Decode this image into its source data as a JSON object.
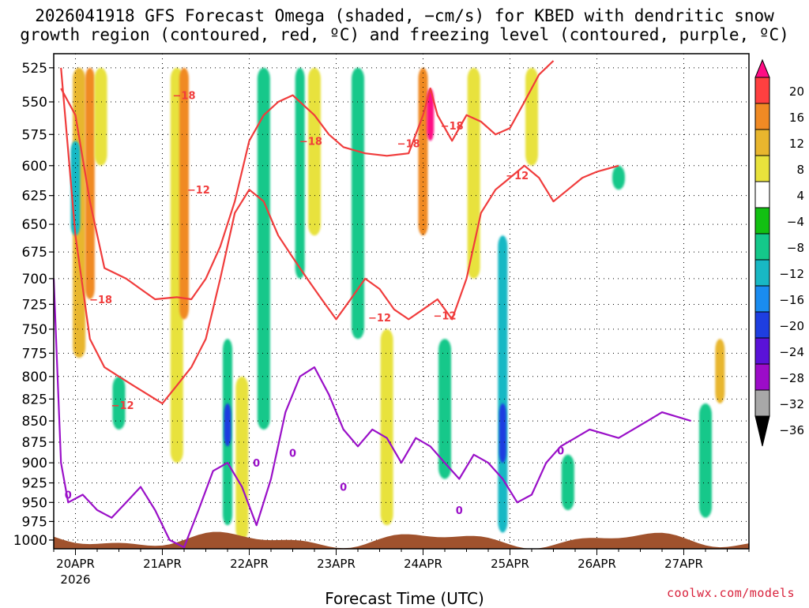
{
  "title": {
    "line1": "2026041918 GFS Forecast Omega (shaded, −cm/s) for KBED with dendritic snow",
    "line2": "growth region (contoured, red, ºC) and freezing level (contoured, purple, ºC)"
  },
  "x_axis_title": "Forecast Time (UTC)",
  "credit": "coolwx.com/models",
  "chart_data": {
    "type": "heatmap",
    "xlabel": "Forecast Time (UTC)",
    "ylabel": "",
    "x_ticks": [
      "20APR",
      "21APR",
      "22APR",
      "23APR",
      "24APR",
      "25APR",
      "26APR",
      "27APR"
    ],
    "x_tick_year": "2026",
    "x_range_hours": [
      -6,
      186
    ],
    "y_ticks": [
      525,
      550,
      575,
      600,
      625,
      650,
      675,
      700,
      725,
      750,
      775,
      800,
      825,
      850,
      875,
      900,
      925,
      950,
      975,
      1000
    ],
    "y_range_hpa": [
      515,
      1012
    ],
    "y_scale": "log-pressure",
    "grid": true,
    "colorbar": {
      "labels": [
        "20",
        "16",
        "12",
        "8",
        "4",
        "−4",
        "−8",
        "−12",
        "−16",
        "−20",
        "−24",
        "−28",
        "−32",
        "−36"
      ],
      "colors": [
        "#ff0d84",
        "#ff4040",
        "#f08a24",
        "#e8b62e",
        "#e8e23c",
        "#ffffff",
        "#12c012",
        "#14c88a",
        "#18b8c4",
        "#1a8cf0",
        "#1e3ee0",
        "#5a12d8",
        "#9c0cc8",
        "#a8a8a8",
        "#000000"
      ]
    },
    "omega_regions": [
      {
        "t": 1,
        "p": [
          525,
          780
        ],
        "v": 8
      },
      {
        "t": 4,
        "p": [
          525,
          720
        ],
        "v": 12
      },
      {
        "t": 7,
        "p": [
          525,
          600
        ],
        "v": 6
      },
      {
        "t": 0,
        "p": [
          580,
          660
        ],
        "v": -14
      },
      {
        "t": 12,
        "p": [
          800,
          860
        ],
        "v": -8
      },
      {
        "t": 28,
        "p": [
          525,
          900
        ],
        "v": 6
      },
      {
        "t": 30,
        "p": [
          525,
          740
        ],
        "v": 12
      },
      {
        "t": 42,
        "p": [
          760,
          980
        ],
        "v": -10
      },
      {
        "t": 42,
        "p": [
          830,
          880
        ],
        "v": -22
      },
      {
        "t": 46,
        "p": [
          800,
          1000
        ],
        "v": 6
      },
      {
        "t": 52,
        "p": [
          525,
          860
        ],
        "v": -8
      },
      {
        "t": 62,
        "p": [
          525,
          700
        ],
        "v": -10
      },
      {
        "t": 66,
        "p": [
          525,
          660
        ],
        "v": 5
      },
      {
        "t": 78,
        "p": [
          525,
          760
        ],
        "v": -8
      },
      {
        "t": 86,
        "p": [
          750,
          980
        ],
        "v": 6
      },
      {
        "t": 96,
        "p": [
          525,
          660
        ],
        "v": 12
      },
      {
        "t": 98,
        "p": [
          540,
          580
        ],
        "v": 20
      },
      {
        "t": 102,
        "p": [
          760,
          920
        ],
        "v": -8
      },
      {
        "t": 110,
        "p": [
          525,
          700
        ],
        "v": 5
      },
      {
        "t": 118,
        "p": [
          660,
          990
        ],
        "v": -12
      },
      {
        "t": 118,
        "p": [
          830,
          900
        ],
        "v": -22
      },
      {
        "t": 126,
        "p": [
          525,
          600
        ],
        "v": 6
      },
      {
        "t": 136,
        "p": [
          890,
          960
        ],
        "v": -8
      },
      {
        "t": 150,
        "p": [
          600,
          620
        ],
        "v": -8
      },
      {
        "t": 174,
        "p": [
          830,
          970
        ],
        "v": -8
      },
      {
        "t": 178,
        "p": [
          760,
          830
        ],
        "v": 10
      }
    ],
    "series": [
      {
        "name": "−18",
        "label_points": [
          [
            30,
            545
          ],
          [
            7,
            720
          ],
          [
            65,
            580
          ],
          [
            92,
            582
          ],
          [
            104,
            568
          ]
        ],
        "values": [
          [
            -4,
            540
          ],
          [
            0,
            560
          ],
          [
            4,
            630
          ],
          [
            8,
            690
          ],
          [
            14,
            700
          ],
          [
            18,
            710
          ],
          [
            22,
            720
          ],
          [
            28,
            718
          ],
          [
            32,
            720
          ],
          [
            36,
            700
          ],
          [
            40,
            670
          ],
          [
            44,
            630
          ],
          [
            48,
            580
          ],
          [
            52,
            560
          ],
          [
            56,
            550
          ],
          [
            60,
            545
          ],
          [
            66,
            560
          ],
          [
            70,
            575
          ],
          [
            74,
            585
          ],
          [
            80,
            590
          ],
          [
            86,
            592
          ],
          [
            92,
            590
          ],
          [
            96,
            560
          ],
          [
            98,
            540
          ],
          [
            100,
            560
          ],
          [
            104,
            580
          ],
          [
            108,
            560
          ],
          [
            112,
            565
          ],
          [
            116,
            575
          ],
          [
            120,
            570
          ],
          [
            124,
            550
          ],
          [
            128,
            530
          ],
          [
            132,
            520
          ]
        ]
      },
      {
        "name": "−12",
        "label_points": [
          [
            34,
            620
          ],
          [
            13,
            832
          ],
          [
            84,
            738
          ],
          [
            102,
            736
          ],
          [
            122,
            608
          ]
        ],
        "values": [
          [
            -4,
            525
          ],
          [
            0,
            660
          ],
          [
            4,
            760
          ],
          [
            8,
            790
          ],
          [
            12,
            800
          ],
          [
            16,
            810
          ],
          [
            20,
            820
          ],
          [
            24,
            830
          ],
          [
            28,
            810
          ],
          [
            32,
            790
          ],
          [
            36,
            760
          ],
          [
            40,
            700
          ],
          [
            44,
            640
          ],
          [
            48,
            620
          ],
          [
            52,
            630
          ],
          [
            56,
            660
          ],
          [
            60,
            680
          ],
          [
            64,
            700
          ],
          [
            68,
            720
          ],
          [
            72,
            740
          ],
          [
            76,
            720
          ],
          [
            80,
            700
          ],
          [
            84,
            710
          ],
          [
            88,
            730
          ],
          [
            92,
            740
          ],
          [
            96,
            730
          ],
          [
            100,
            720
          ],
          [
            104,
            740
          ],
          [
            108,
            700
          ],
          [
            112,
            640
          ],
          [
            116,
            620
          ],
          [
            120,
            610
          ],
          [
            124,
            600
          ],
          [
            128,
            610
          ],
          [
            132,
            630
          ],
          [
            136,
            620
          ],
          [
            140,
            610
          ],
          [
            144,
            605
          ],
          [
            150,
            600
          ]
        ]
      },
      {
        "name": "0",
        "label_points": [
          [
            -2,
            940
          ],
          [
            50,
            900
          ],
          [
            60,
            888
          ],
          [
            74,
            930
          ],
          [
            106,
            960
          ],
          [
            134,
            885
          ]
        ],
        "values": [
          [
            -6,
            700
          ],
          [
            -4,
            900
          ],
          [
            -2,
            950
          ],
          [
            2,
            940
          ],
          [
            6,
            960
          ],
          [
            10,
            970
          ],
          [
            14,
            950
          ],
          [
            18,
            930
          ],
          [
            22,
            960
          ],
          [
            26,
            1000
          ],
          [
            30,
            1010
          ],
          [
            34,
            960
          ],
          [
            38,
            910
          ],
          [
            42,
            900
          ],
          [
            46,
            930
          ],
          [
            50,
            980
          ],
          [
            54,
            920
          ],
          [
            58,
            840
          ],
          [
            62,
            800
          ],
          [
            66,
            790
          ],
          [
            70,
            820
          ],
          [
            74,
            860
          ],
          [
            78,
            880
          ],
          [
            82,
            860
          ],
          [
            86,
            870
          ],
          [
            90,
            900
          ],
          [
            94,
            870
          ],
          [
            98,
            880
          ],
          [
            102,
            900
          ],
          [
            106,
            920
          ],
          [
            110,
            890
          ],
          [
            114,
            900
          ],
          [
            118,
            920
          ],
          [
            122,
            950
          ],
          [
            126,
            940
          ],
          [
            130,
            900
          ],
          [
            134,
            880
          ],
          [
            138,
            870
          ],
          [
            142,
            860
          ],
          [
            146,
            865
          ],
          [
            150,
            870
          ],
          [
            154,
            860
          ],
          [
            158,
            850
          ],
          [
            162,
            840
          ],
          [
            166,
            845
          ],
          [
            170,
            850
          ]
        ]
      }
    ]
  }
}
